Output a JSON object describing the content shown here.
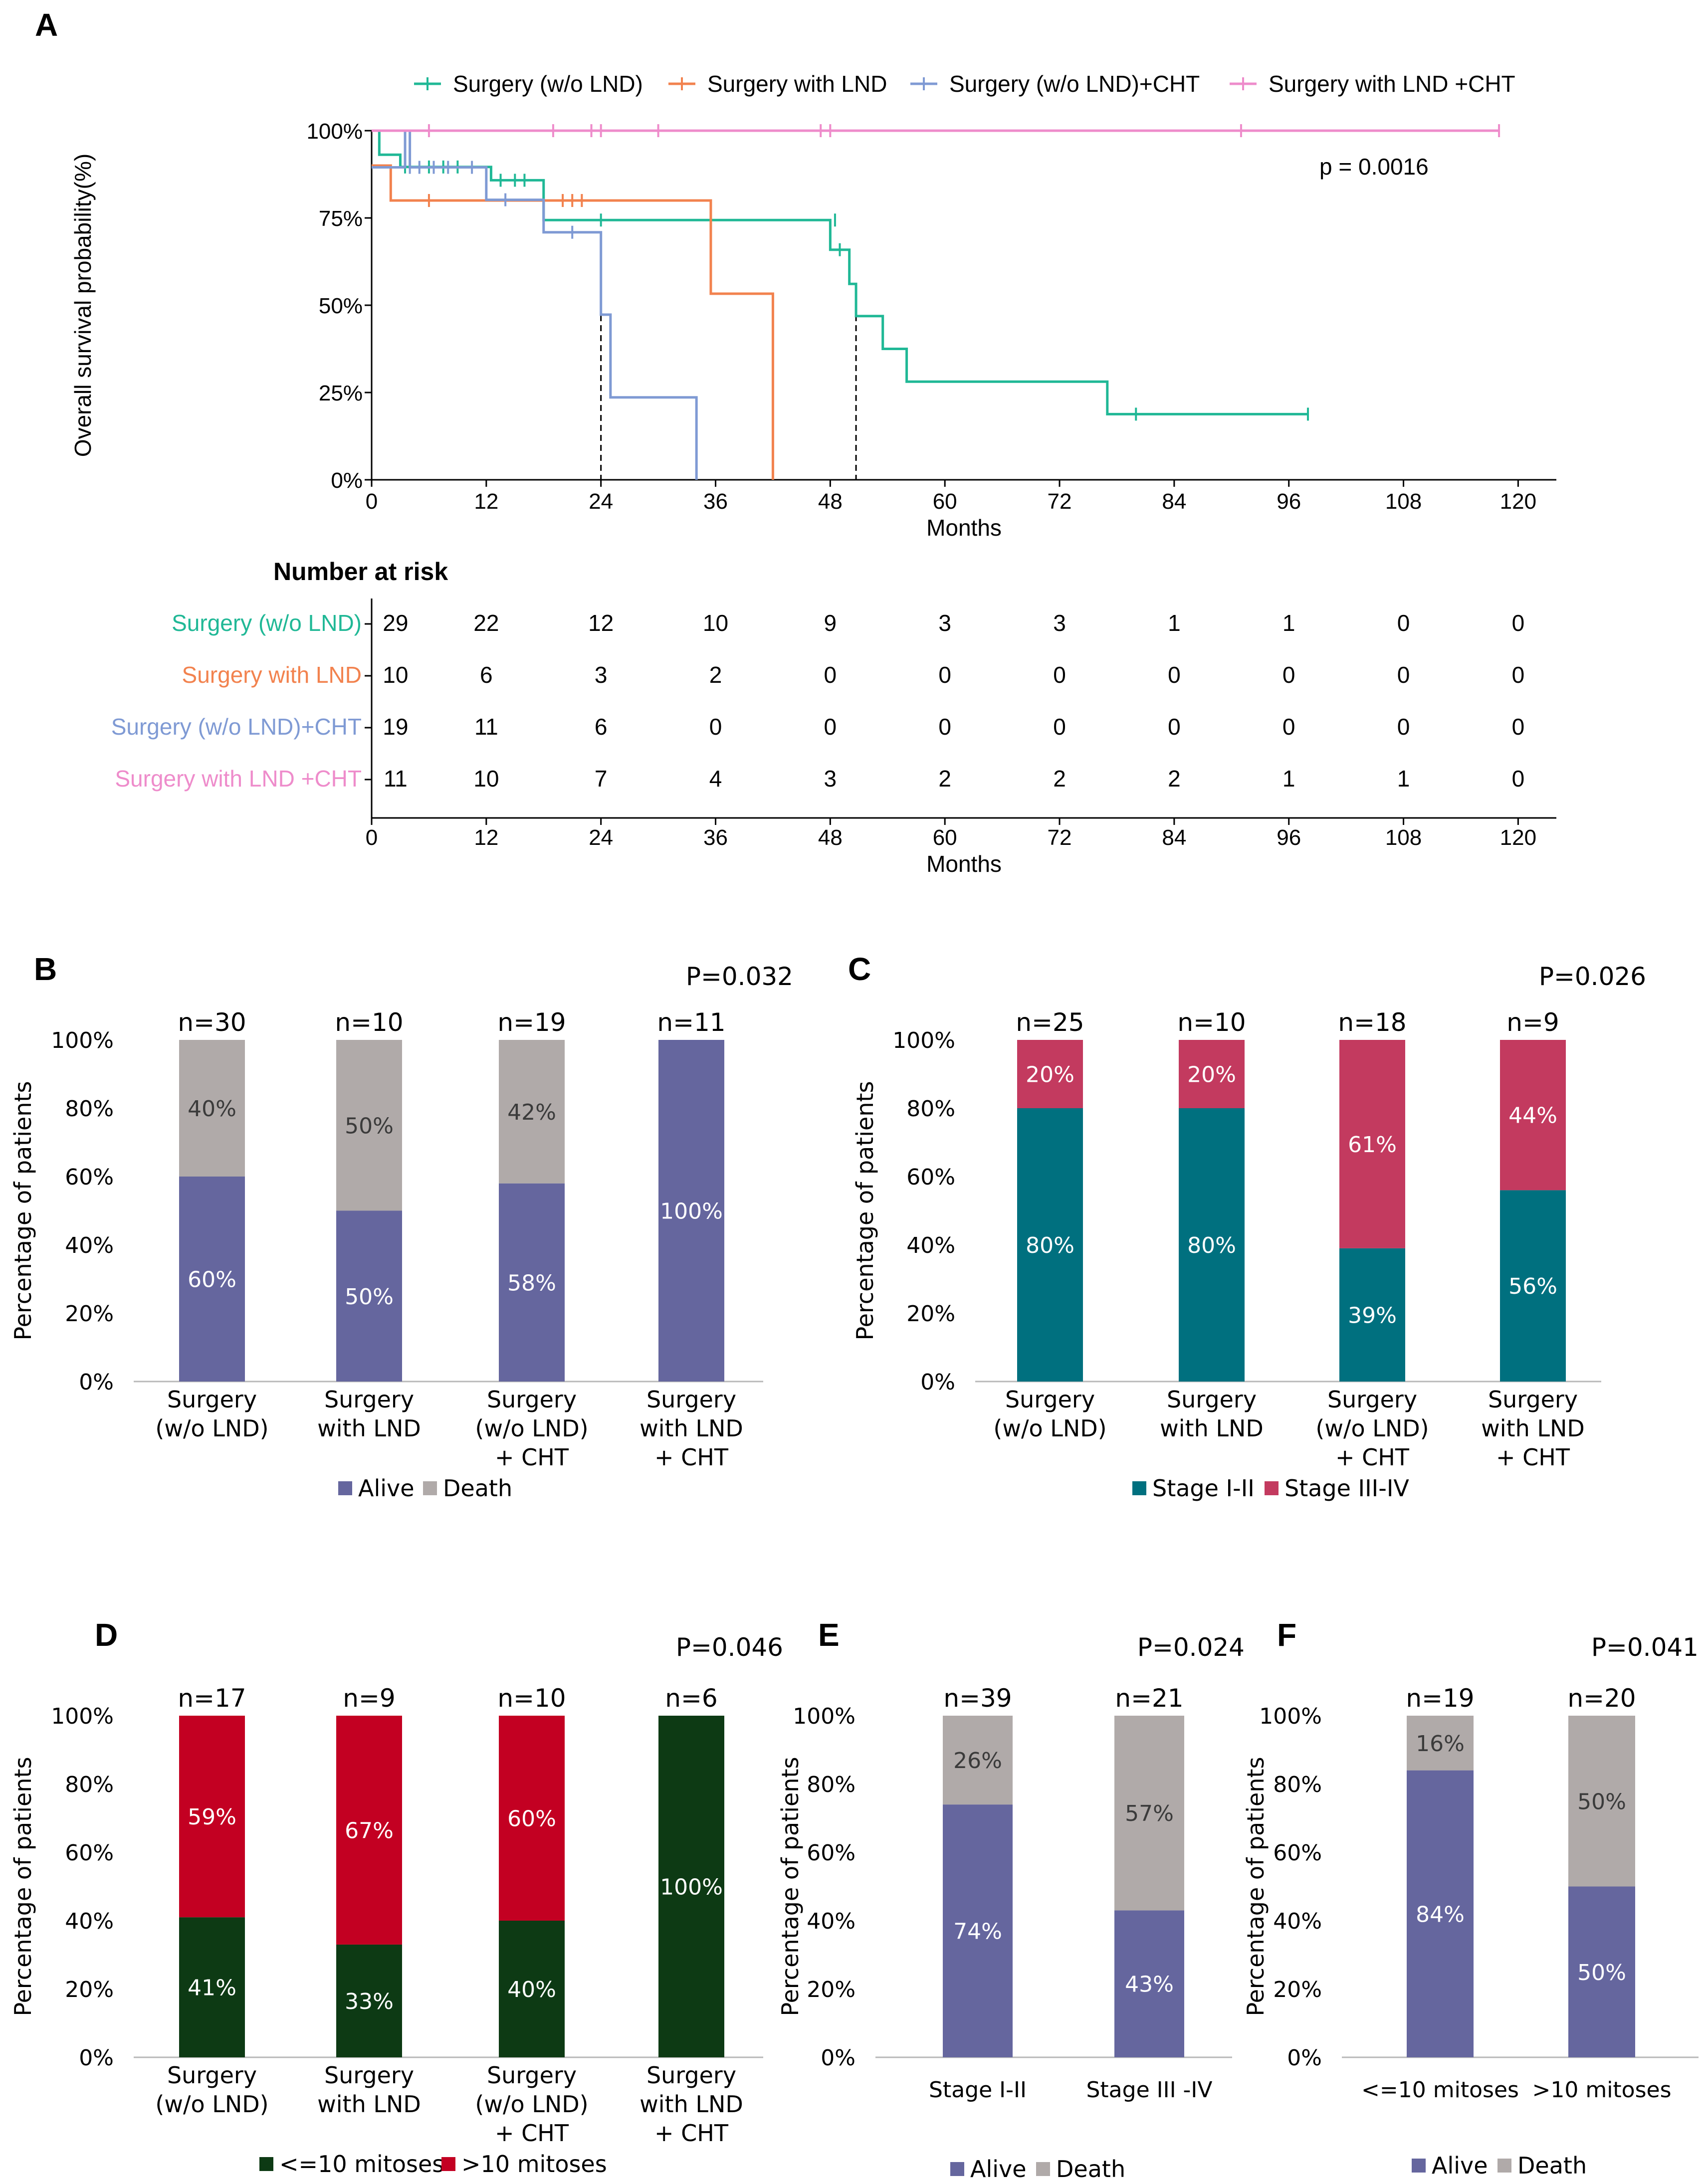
{
  "colors": {
    "green": "#20b896",
    "orange": "#f2824e",
    "blue": "#7f9ad4",
    "pink": "#ee8ccb",
    "alive": "#65669e",
    "death": "#b0aaa9",
    "stage12": "#00707f",
    "stage34": "#c33a5f",
    "mit_low": "#0d3a14",
    "mit_high": "#c30022"
  },
  "chart_data": [
    {
      "panel": "A",
      "type": "line",
      "subtype": "kaplan-meier",
      "ylabel": "Overall survival probability(%)",
      "xlabel": "Months",
      "xlim": [
        0,
        124
      ],
      "ylim": [
        0,
        100
      ],
      "xticks": [
        0,
        12,
        24,
        36,
        48,
        60,
        72,
        84,
        96,
        108,
        120
      ],
      "yticks": [
        "0%",
        "25%",
        "50%",
        "75%",
        "100%"
      ],
      "pvalue": "p = 0.0016",
      "medians": [
        24,
        42,
        50.7
      ],
      "series": [
        {
          "name": "Surgery (w/o LND)",
          "color_key": "green",
          "steps": [
            [
              0,
              100
            ],
            [
              0.8,
              93.1
            ],
            [
              3,
              89.6
            ],
            [
              9,
              89.6
            ],
            [
              12.5,
              85.8
            ],
            [
              18,
              85.8
            ],
            [
              18,
              74.4
            ],
            [
              48,
              74.4
            ],
            [
              48,
              65.9
            ],
            [
              50,
              65.9
            ],
            [
              50,
              56.1
            ],
            [
              50.7,
              56.1
            ],
            [
              50.7,
              46.9
            ],
            [
              53.5,
              46.9
            ],
            [
              53.5,
              37.5
            ],
            [
              56,
              37.5
            ],
            [
              56,
              28.1
            ],
            [
              77,
              28.1
            ],
            [
              77,
              18.8
            ],
            [
              98,
              18.8
            ]
          ],
          "censors": [
            [
              3.5,
              89.6
            ],
            [
              6,
              89.6
            ],
            [
              7.5,
              89.6
            ],
            [
              9,
              89.6
            ],
            [
              13.5,
              85.8
            ],
            [
              15,
              85.8
            ],
            [
              16,
              85.8
            ],
            [
              24,
              74.4
            ],
            [
              48.5,
              74.4
            ],
            [
              49,
              65.9
            ],
            [
              80,
              18.8
            ],
            [
              98,
              18.8
            ]
          ]
        },
        {
          "name": "Surgery with LND",
          "color_key": "orange",
          "steps": [
            [
              0,
              90
            ],
            [
              2,
              90
            ],
            [
              2,
              80
            ],
            [
              35.5,
              80
            ],
            [
              35.5,
              53.3
            ],
            [
              42,
              53.3
            ],
            [
              42,
              0
            ]
          ],
          "censors": [
            [
              6,
              80
            ],
            [
              20,
              80
            ],
            [
              21,
              80
            ],
            [
              22,
              80
            ]
          ]
        },
        {
          "name": "Surgery (w/o LND)+CHT",
          "color_key": "blue",
          "steps": [
            [
              0,
              89.5
            ],
            [
              3.5,
              89.5
            ],
            [
              3.5,
              100
            ],
            [
              4,
              100
            ],
            [
              4,
              89.5
            ],
            [
              12,
              89.5
            ],
            [
              12,
              80.2
            ],
            [
              18,
              80.2
            ],
            [
              18,
              70.9
            ],
            [
              24,
              70.9
            ],
            [
              24,
              47.3
            ],
            [
              25,
              47.3
            ],
            [
              25,
              23.6
            ],
            [
              34,
              23.6
            ],
            [
              34,
              0
            ]
          ],
          "censors": [
            [
              4,
              89.5
            ],
            [
              5,
              89.5
            ],
            [
              6.5,
              89.5
            ],
            [
              8,
              89.5
            ],
            [
              10.5,
              89.5
            ],
            [
              14,
              80.2
            ],
            [
              21,
              70.9
            ]
          ]
        },
        {
          "name": "Surgery with LND +CHT",
          "color_key": "pink",
          "steps": [
            [
              0,
              100
            ],
            [
              118,
              100
            ]
          ],
          "censors": [
            [
              6,
              100
            ],
            [
              19,
              100
            ],
            [
              23,
              100
            ],
            [
              24,
              100
            ],
            [
              30,
              100
            ],
            [
              47,
              100
            ],
            [
              48,
              100
            ],
            [
              91,
              100
            ],
            [
              118,
              100
            ]
          ]
        }
      ]
    },
    {
      "panel": "A-risk",
      "type": "table",
      "title": "Number at risk",
      "xlabel": "Months",
      "xticks": [
        0,
        12,
        24,
        36,
        48,
        60,
        72,
        84,
        96,
        108,
        120
      ],
      "rows": [
        {
          "name": "Surgery (w/o LND)",
          "color_key": "green",
          "values": [
            29,
            22,
            12,
            10,
            9,
            3,
            3,
            1,
            1,
            0,
            0
          ]
        },
        {
          "name": "Surgery with LND",
          "color_key": "orange",
          "values": [
            10,
            6,
            3,
            2,
            0,
            0,
            0,
            0,
            0,
            0,
            0
          ]
        },
        {
          "name": "Surgery (w/o LND)+CHT",
          "color_key": "blue",
          "values": [
            19,
            11,
            6,
            0,
            0,
            0,
            0,
            0,
            0,
            0,
            0
          ]
        },
        {
          "name": "Surgery with LND +CHT",
          "color_key": "pink",
          "values": [
            11,
            10,
            7,
            4,
            3,
            2,
            2,
            2,
            1,
            1,
            0
          ]
        }
      ]
    },
    {
      "panel": "B",
      "type": "bar",
      "stacked": true,
      "ylabel": "Percentage of patients",
      "yticks": [
        "0%",
        "20%",
        "40%",
        "60%",
        "80%",
        "100%"
      ],
      "pvalue": "P=0.032",
      "categories": [
        [
          "Surgery",
          "(w/o LND)"
        ],
        [
          "Surgery",
          "with LND"
        ],
        [
          "Surgery",
          "(w/o LND)",
          "+ CHT"
        ],
        [
          "Surgery",
          "with LND",
          "+ CHT"
        ]
      ],
      "n": [
        "n=30",
        "n=10",
        "n=19",
        "n=11"
      ],
      "series": [
        {
          "name": "Alive",
          "color_key": "alive",
          "values": [
            60,
            50,
            58,
            100
          ],
          "labels": [
            "60%",
            "50%",
            "58%",
            "100%"
          ]
        },
        {
          "name": "Death",
          "color_key": "death",
          "values": [
            40,
            50,
            42,
            0
          ],
          "labels": [
            "40%",
            "50%",
            "42%",
            ""
          ]
        }
      ],
      "legend": [
        "Alive",
        "Death"
      ]
    },
    {
      "panel": "C",
      "type": "bar",
      "stacked": true,
      "ylabel": "Percentage of patients",
      "yticks": [
        "0%",
        "20%",
        "40%",
        "60%",
        "80%",
        "100%"
      ],
      "pvalue": "P=0.026",
      "categories": [
        [
          "Surgery",
          "(w/o LND)"
        ],
        [
          "Surgery",
          "with LND"
        ],
        [
          "Surgery",
          "(w/o LND)",
          "+ CHT"
        ],
        [
          "Surgery",
          "with LND",
          "+ CHT"
        ]
      ],
      "n": [
        "n=25",
        "n=10",
        "n=18",
        "n=9"
      ],
      "series": [
        {
          "name": "Stage I-II",
          "color_key": "stage12",
          "values": [
            80,
            80,
            39,
            56
          ],
          "labels": [
            "80%",
            "80%",
            "39%",
            "56%"
          ]
        },
        {
          "name": "Stage III-IV",
          "color_key": "stage34",
          "values": [
            20,
            20,
            61,
            44
          ],
          "labels": [
            "20%",
            "20%",
            "61%",
            "44%"
          ]
        }
      ],
      "legend": [
        "Stage I-II",
        "Stage III-IV"
      ]
    },
    {
      "panel": "D",
      "type": "bar",
      "stacked": true,
      "ylabel": "Percentage of patients",
      "yticks": [
        "0%",
        "20%",
        "40%",
        "60%",
        "80%",
        "100%"
      ],
      "pvalue": "P=0.046",
      "categories": [
        [
          "Surgery",
          "(w/o LND)"
        ],
        [
          "Surgery",
          "with LND"
        ],
        [
          "Surgery",
          "(w/o LND)",
          "+ CHT"
        ],
        [
          "Surgery",
          "with LND",
          "+ CHT"
        ]
      ],
      "n": [
        "n=17",
        "n=9",
        "n=10",
        "n=6"
      ],
      "series": [
        {
          "name": "<=10 mitoses",
          "color_key": "mit_low",
          "values": [
            41,
            33,
            40,
            100
          ],
          "labels": [
            "41%",
            "33%",
            "40%",
            "100%"
          ]
        },
        {
          "name": ">10 mitoses",
          "color_key": "mit_high",
          "values": [
            59,
            67,
            60,
            0
          ],
          "labels": [
            "59%",
            "67%",
            "60%",
            ""
          ]
        }
      ],
      "legend": [
        "<=10 mitoses",
        ">10 mitoses"
      ]
    },
    {
      "panel": "E",
      "type": "bar",
      "stacked": true,
      "ylabel": "Percentage of patients",
      "yticks": [
        "0%",
        "20%",
        "40%",
        "60%",
        "80%",
        "100%"
      ],
      "pvalue": "P=0.024",
      "categories": [
        [
          "Stage I-II"
        ],
        [
          "Stage III -IV"
        ]
      ],
      "n": [
        "n=39",
        "n=21"
      ],
      "series": [
        {
          "name": "Alive",
          "color_key": "alive",
          "values": [
            74,
            43
          ],
          "labels": [
            "74%",
            "43%"
          ]
        },
        {
          "name": "Death",
          "color_key": "death",
          "values": [
            26,
            57
          ],
          "labels": [
            "26%",
            "57%"
          ]
        }
      ],
      "legend": [
        "Alive",
        "Death"
      ]
    },
    {
      "panel": "F",
      "type": "bar",
      "stacked": true,
      "ylabel": "Percentage of patients",
      "yticks": [
        "0%",
        "20%",
        "40%",
        "60%",
        "80%",
        "100%"
      ],
      "pvalue": "P=0.041",
      "categories": [
        [
          "<=10 mitoses"
        ],
        [
          ">10 mitoses"
        ]
      ],
      "n": [
        "n=19",
        "n=20"
      ],
      "series": [
        {
          "name": "Alive",
          "color_key": "alive",
          "values": [
            84,
            50
          ],
          "labels": [
            "84%",
            "50%"
          ]
        },
        {
          "name": "Death",
          "color_key": "death",
          "values": [
            16,
            50
          ],
          "labels": [
            "16%",
            "50%"
          ]
        }
      ],
      "legend": [
        "Alive",
        "Death"
      ]
    }
  ]
}
